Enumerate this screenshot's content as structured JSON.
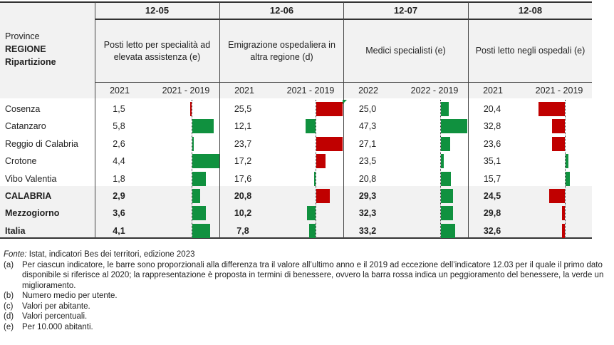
{
  "header": {
    "stub": [
      "Province",
      "REGIONE",
      "Ripartizione"
    ],
    "indicators": [
      {
        "code": "12-05",
        "title": "Posti letto per specialità ad elevata assistenza (e)",
        "col1": "2021",
        "col2": "2021 - 2019"
      },
      {
        "code": "12-06",
        "title": "Emigrazione ospedaliera in altra regione (d)",
        "col1": "2021",
        "col2": "2021 - 2019"
      },
      {
        "code": "12-07",
        "title": "Medici specialisti (e)",
        "col1": "2022",
        "col2": "2022 - 2019"
      },
      {
        "code": "12-08",
        "title": "Posti letto negli ospedali (e)",
        "col1": "2021",
        "col2": "2021 - 2019"
      }
    ]
  },
  "rows": [
    {
      "name": "Cosenza",
      "bold": false,
      "values": [
        "1,5",
        "25,5",
        "25,0",
        "20,4"
      ]
    },
    {
      "name": "Catanzaro",
      "bold": false,
      "values": [
        "5,8",
        "12,1",
        "47,3",
        "32,8"
      ]
    },
    {
      "name": "Reggio di Calabria",
      "bold": false,
      "values": [
        "2,6",
        "23,7",
        "27,1",
        "23,6"
      ]
    },
    {
      "name": "Crotone",
      "bold": false,
      "values": [
        "4,4",
        "17,2",
        "23,5",
        "35,1"
      ]
    },
    {
      "name": "Vibo Valentia",
      "bold": false,
      "values": [
        "1,8",
        "17,6",
        "20,8",
        "15,7"
      ]
    },
    {
      "name": "CALABRIA",
      "bold": true,
      "values": [
        "2,9",
        "20,8",
        "29,3",
        "24,5"
      ]
    },
    {
      "name": "Mezzogiorno",
      "bold": true,
      "values": [
        "3,6",
        "10,2",
        "32,3",
        "29,8"
      ]
    },
    {
      "name": "Italia",
      "bold": true,
      "values": [
        "4,1",
        "7,8",
        "33,2",
        "32,6"
      ]
    }
  ],
  "chart_data": {
    "type": "bar",
    "orientation": "horizontal-diverging",
    "categories": [
      "Cosenza",
      "Catanzaro",
      "Reggio di Calabria",
      "Crotone",
      "Vibo Valentia",
      "CALABRIA",
      "Mezzogiorno",
      "Italia"
    ],
    "note": "Bar length proportional to change vs 2019; sign expressed in well-being terms: green = improvement (right), red = worsening (left/right as plotted)",
    "series": [
      {
        "name": "12-05 2021 - 2019",
        "relative_values": [
          -0.05,
          0.8,
          0.05,
          1.0,
          0.5,
          0.3,
          0.5,
          0.65
        ],
        "colors": [
          "red",
          "green",
          "green",
          "green",
          "green",
          "green",
          "green",
          "green"
        ]
      },
      {
        "name": "12-06 2021 - 2019",
        "relative_values": [
          1.0,
          -0.38,
          1.0,
          0.35,
          -0.05,
          0.5,
          -0.33,
          -0.25
        ],
        "colors": [
          "red",
          "green",
          "red",
          "red",
          "green",
          "red",
          "green",
          "green"
        ]
      },
      {
        "name": "12-07 2022 - 2019",
        "relative_values": [
          0.3,
          1.0,
          0.35,
          0.1,
          0.38,
          0.46,
          0.47,
          0.53
        ],
        "colors": [
          "green",
          "green",
          "green",
          "green",
          "green",
          "green",
          "green",
          "green"
        ]
      },
      {
        "name": "12-08 2021 - 2019",
        "relative_values": [
          -1.0,
          -0.5,
          -0.5,
          0.1,
          0.15,
          -0.6,
          -0.1,
          -0.1
        ],
        "colors": [
          "red",
          "red",
          "red",
          "green",
          "green",
          "red",
          "red",
          "red"
        ]
      }
    ],
    "colors": {
      "improvement": "#10913f",
      "worsening": "#c00000"
    }
  },
  "notes": {
    "source_label": "Fonte:",
    "source_text": " Istat, indicatori Bes dei territori, edizione 2023",
    "items": [
      {
        "key": "(a)",
        "text": "Per ciascun indicatore, le barre sono proporzionali alla differenza tra il valore all’ultimo anno e il 2019 ad eccezione dell’indicatore 12.03 per il quale il primo dato disponibile si riferisce al 2020; la rappresentazione è proposta in termini di benessere, ovvero la barra rossa indica un peggioramento del benessere, la verde un miglioramento."
      },
      {
        "key": "(b)",
        "text": "Numero medio per utente."
      },
      {
        "key": "(c)",
        "text": "Valori per abitante."
      },
      {
        "key": "(d)",
        "text": "Valori percentuali."
      },
      {
        "key": "(e)",
        "text": "Per 10.000 abitanti."
      }
    ]
  }
}
